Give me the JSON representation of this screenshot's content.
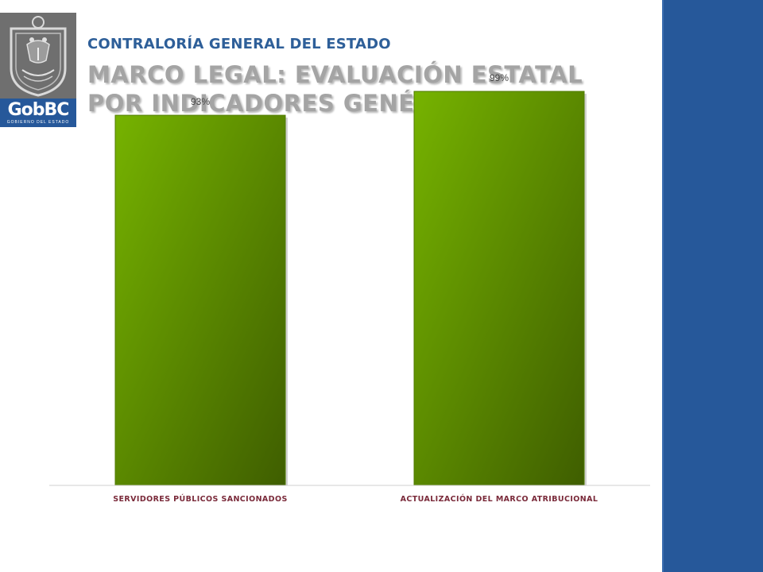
{
  "header": {
    "org": "CONTRALORÍA GENERAL DEL ESTADO",
    "title_line1": "MARCO LEGAL: EVALUACIÓN ESTATAL",
    "title_line2": "POR INDICADORES GENÉRICOS"
  },
  "logo": {
    "main": "GobBC",
    "sub": "GOBIERNO DEL ESTADO"
  },
  "colors": {
    "bar_light": "#76b300",
    "bar_dark": "#3f5e00",
    "accent": "#26589a"
  },
  "chart_data": {
    "type": "bar",
    "categories": [
      "SERVIDORES PÚBLICOS SANCIONADOS",
      "ACTUALIZACIÓN DEL MARCO ATRIBUCIONAL"
    ],
    "values": [
      93,
      99
    ],
    "value_labels": [
      "93%",
      "99%"
    ],
    "ylim": [
      0,
      100
    ],
    "grid": false,
    "legend": "none"
  }
}
